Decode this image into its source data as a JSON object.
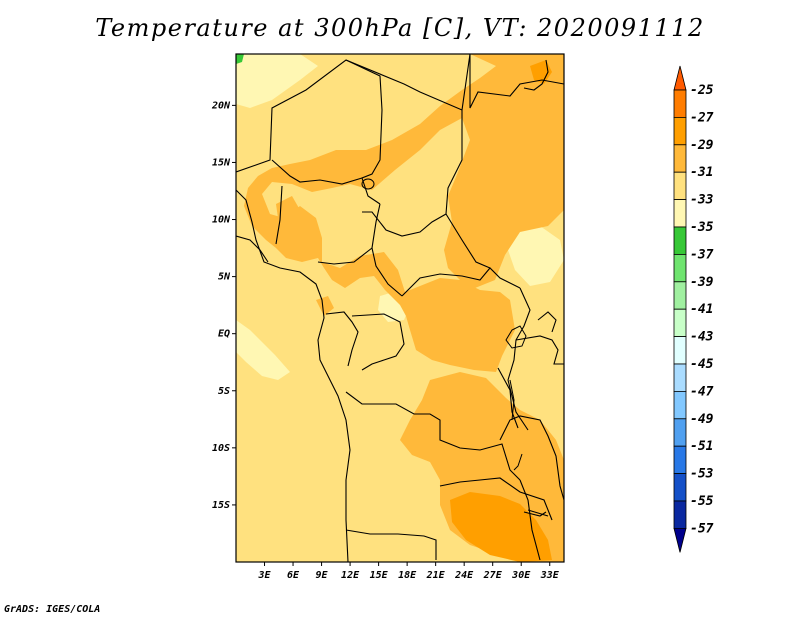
{
  "title": "Temperature at 300hPa [C], VT: 2020091112",
  "footer": "GrADS: IGES/COLA",
  "map": {
    "lon_range": [
      0,
      34.5
    ],
    "lat_range": [
      -20,
      24.5
    ],
    "x_ticks": [
      "3E",
      "6E",
      "9E",
      "12E",
      "15E",
      "18E",
      "21E",
      "24E",
      "27E",
      "30E",
      "33E"
    ],
    "x_tick_values": [
      3,
      6,
      9,
      12,
      15,
      18,
      21,
      24,
      27,
      30,
      33
    ],
    "y_ticks": [
      "20N",
      "15N",
      "10N",
      "5N",
      "EQ",
      "5S",
      "10S",
      "15S"
    ],
    "y_tick_values": [
      20,
      15,
      10,
      5,
      0,
      -5,
      -10,
      -15
    ],
    "background_level_color": "#ffe17f"
  },
  "colorbar": {
    "labels": [
      "-25",
      "-27",
      "-29",
      "-31",
      "-33",
      "-35",
      "-37",
      "-39",
      "-41",
      "-43",
      "-45",
      "-47",
      "-49",
      "-51",
      "-53",
      "-55",
      "-57"
    ],
    "colors": [
      "#ff5a00",
      "#ff7d00",
      "#ff9f00",
      "#ffb93a",
      "#ffe17f",
      "#fff7b3",
      "#37c837",
      "#6fe46f",
      "#a0f0a0",
      "#c8ffc8",
      "#e1ffff",
      "#aadcff",
      "#82c8ff",
      "#50a0f0",
      "#2878e6",
      "#1450c8",
      "#0a28a0",
      "#00008c"
    ]
  }
}
